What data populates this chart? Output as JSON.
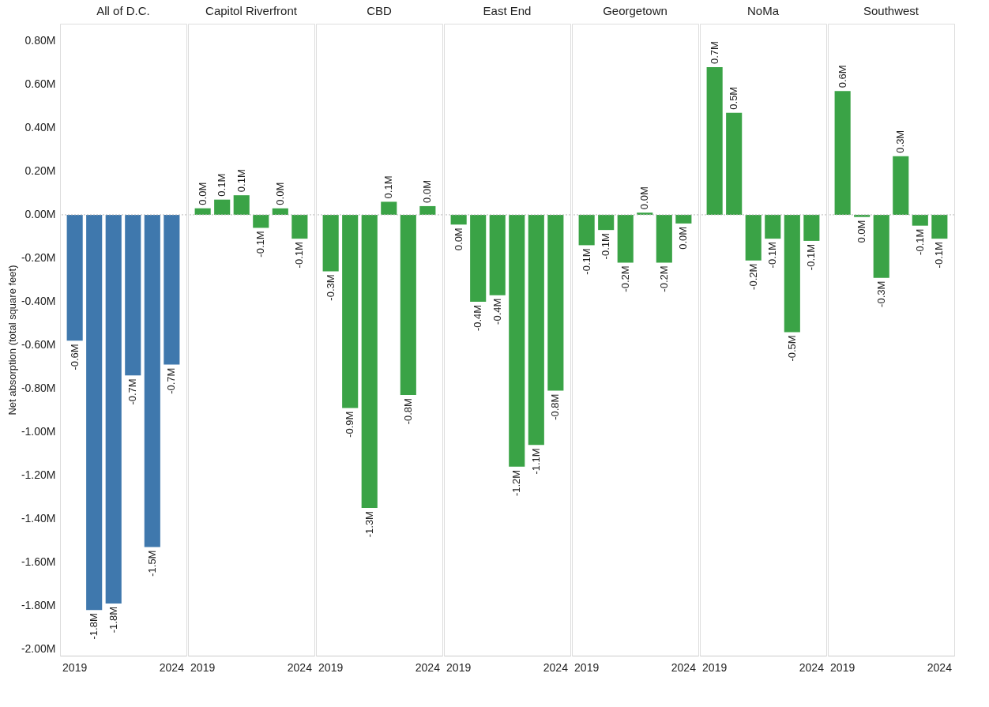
{
  "chart_data": [
    {
      "type": "bar",
      "title": "All of D.C.",
      "ylabel": "Net absorption (total square feet)",
      "categories": [
        "2019",
        null,
        null,
        null,
        null,
        "2024"
      ],
      "values": [
        -0.58,
        -1.82,
        -1.79,
        -0.74,
        -1.53,
        -0.69
      ],
      "value_labels": [
        "-0.6M",
        "-1.8M",
        "-1.8M",
        "-0.7M",
        "-1.5M",
        "-0.7M"
      ],
      "color": "#3f78ad",
      "ylim": [
        -2.03,
        0.88
      ],
      "tick_labels": "xy",
      "yticks": [
        {
          "value": 0.8,
          "label": "0.80M"
        },
        {
          "value": 0.6,
          "label": "0.60M"
        },
        {
          "value": 0.4,
          "label": "0.40M"
        },
        {
          "value": 0.2,
          "label": "0.20M"
        },
        {
          "value": 0,
          "label": "0.00M"
        },
        {
          "value": -0.2,
          "label": "-0.20M"
        },
        {
          "value": -0.4,
          "label": "-0.40M"
        },
        {
          "value": -0.6,
          "label": "-0.60M"
        },
        {
          "value": -0.8,
          "label": "-0.80M"
        },
        {
          "value": -1.0,
          "label": "-1.00M"
        },
        {
          "value": -1.2,
          "label": "-1.20M"
        },
        {
          "value": -1.4,
          "label": "-1.40M"
        },
        {
          "value": -1.6,
          "label": "-1.60M"
        },
        {
          "value": -1.8,
          "label": "-1.80M"
        },
        {
          "value": -2.0,
          "label": "-2.00M"
        }
      ],
      "ref_lines": [
        {
          "axis": "y",
          "value": 0,
          "color": "#bbbbbb",
          "line_style": "dotted"
        }
      ],
      "grid": false
    },
    {
      "type": "bar",
      "title": "Capitol Riverfront",
      "categories": [
        "2019",
        null,
        null,
        null,
        null,
        "2024"
      ],
      "values": [
        0.03,
        0.07,
        0.09,
        -0.06,
        0.03,
        -0.11
      ],
      "value_labels": [
        "0.0M",
        "0.1M",
        "0.1M",
        "-0.1M",
        "0.0M",
        "-0.1M"
      ],
      "color": "#3aa346",
      "ylim": [
        -2.03,
        0.88
      ],
      "tick_labels": "x",
      "ref_lines": [
        {
          "axis": "y",
          "value": 0,
          "color": "#bbbbbb",
          "line_style": "dotted"
        }
      ],
      "grid": false
    },
    {
      "type": "bar",
      "title": "CBD",
      "categories": [
        "2019",
        null,
        null,
        null,
        null,
        "2024"
      ],
      "values": [
        -0.26,
        -0.89,
        -1.35,
        0.06,
        -0.83,
        0.04
      ],
      "value_labels": [
        "-0.3M",
        "-0.9M",
        "-1.3M",
        "0.1M",
        "-0.8M",
        "0.0M"
      ],
      "color": "#3aa346",
      "ylim": [
        -2.03,
        0.88
      ],
      "tick_labels": "x",
      "ref_lines": [
        {
          "axis": "y",
          "value": 0,
          "color": "#bbbbbb",
          "line_style": "dotted"
        }
      ],
      "grid": false
    },
    {
      "type": "bar",
      "title": "East End",
      "categories": [
        "2019",
        null,
        null,
        null,
        null,
        "2024"
      ],
      "values": [
        -0.045,
        -0.4,
        -0.37,
        -1.16,
        -1.06,
        -0.81
      ],
      "value_labels": [
        "0.0M",
        "-0.4M",
        "-0.4M",
        "-1.2M",
        "-1.1M",
        "-0.8M"
      ],
      "color": "#3aa346",
      "ylim": [
        -2.03,
        0.88
      ],
      "tick_labels": "x",
      "ref_lines": [
        {
          "axis": "y",
          "value": 0,
          "color": "#bbbbbb",
          "line_style": "dotted"
        }
      ],
      "grid": false
    },
    {
      "type": "bar",
      "title": "Georgetown",
      "categories": [
        "2019",
        null,
        null,
        null,
        null,
        "2024"
      ],
      "values": [
        -0.14,
        -0.07,
        -0.22,
        0.01,
        -0.22,
        -0.04
      ],
      "value_labels": [
        "-0.1M",
        "-0.1M",
        "-0.2M",
        "0.0M",
        "-0.2M",
        "0.0M"
      ],
      "color": "#3aa346",
      "ylim": [
        -2.03,
        0.88
      ],
      "tick_labels": "x",
      "ref_lines": [
        {
          "axis": "y",
          "value": 0,
          "color": "#bbbbbb",
          "line_style": "dotted"
        }
      ],
      "grid": false
    },
    {
      "type": "bar",
      "title": "NoMa",
      "categories": [
        "2019",
        null,
        null,
        null,
        null,
        "2024"
      ],
      "values": [
        0.68,
        0.47,
        -0.21,
        -0.11,
        -0.54,
        -0.12
      ],
      "value_labels": [
        "0.7M",
        "0.5M",
        "-0.2M",
        "-0.1M",
        "-0.5M",
        "-0.1M"
      ],
      "color": "#3aa346",
      "ylim": [
        -2.03,
        0.88
      ],
      "tick_labels": "x",
      "ref_lines": [
        {
          "axis": "y",
          "value": 0,
          "color": "#bbbbbb",
          "line_style": "dotted"
        }
      ],
      "grid": false
    },
    {
      "type": "bar",
      "title": "Southwest",
      "categories": [
        "2019",
        null,
        null,
        null,
        null,
        "2024"
      ],
      "values": [
        0.57,
        -0.01,
        -0.29,
        0.27,
        -0.05,
        -0.11
      ],
      "value_labels": [
        "0.6M",
        "0.0M",
        "-0.3M",
        "0.3M",
        "-0.1M",
        "-0.1M"
      ],
      "color": "#3aa346",
      "ylim": [
        -2.03,
        0.88
      ],
      "tick_labels": "x",
      "ref_lines": [
        {
          "axis": "y",
          "value": 0,
          "color": "#bbbbbb",
          "line_style": "dotted"
        }
      ],
      "grid": false
    }
  ]
}
